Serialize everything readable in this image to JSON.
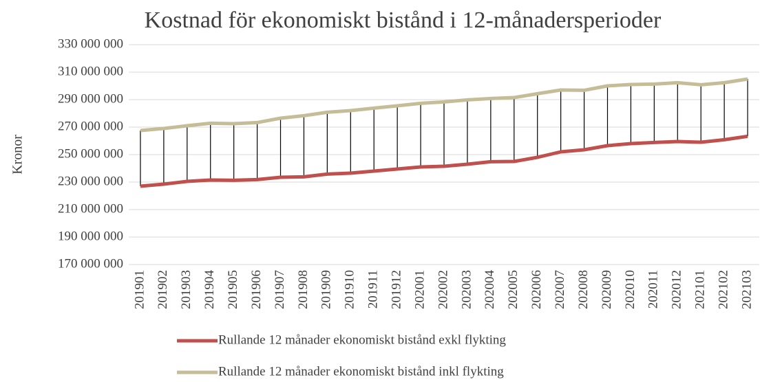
{
  "chart_data": {
    "type": "line",
    "title": "Kostnad för ekonomiskt bistånd i 12-månadersperioder",
    "y_label": "Kronor",
    "categories": [
      "201901",
      "201902",
      "201903",
      "201904",
      "201905",
      "201906",
      "201907",
      "201908",
      "201909",
      "201910",
      "201911",
      "201912",
      "202001",
      "202002",
      "202003",
      "202004",
      "202005",
      "202006",
      "202007",
      "202008",
      "202009",
      "202010",
      "202011",
      "202012",
      "202101",
      "202102",
      "202103"
    ],
    "series": [
      {
        "name": "Rullande 12 månader ekonomiskt bistånd exkl flykting",
        "color": "#c0504d",
        "values": [
          227000000,
          228500000,
          230500000,
          231500000,
          231300000,
          231800000,
          233500000,
          233800000,
          235800000,
          236500000,
          238000000,
          239500000,
          241000000,
          241500000,
          243000000,
          244800000,
          245000000,
          248000000,
          252000000,
          253500000,
          256500000,
          258000000,
          258800000,
          259500000,
          259000000,
          260800000,
          263300000
        ]
      },
      {
        "name": "Rullande 12 månader ekonomiskt bistånd inkl flykting",
        "color": "#c4bd97",
        "values": [
          267500000,
          269000000,
          271000000,
          272800000,
          272500000,
          273300000,
          276500000,
          278300000,
          280800000,
          282000000,
          283800000,
          285500000,
          287300000,
          288300000,
          289800000,
          290800000,
          291500000,
          294300000,
          297000000,
          296800000,
          300000000,
          301000000,
          301300000,
          302300000,
          300800000,
          302300000,
          305000000
        ]
      }
    ],
    "high_low_lines": true,
    "ylim": [
      170000000,
      330000000
    ],
    "yticks": [
      {
        "value": 170000000,
        "label": "170 000 000"
      },
      {
        "value": 190000000,
        "label": "190 000 000"
      },
      {
        "value": 210000000,
        "label": "210 000 000"
      },
      {
        "value": 230000000,
        "label": "230 000 000"
      },
      {
        "value": 250000000,
        "label": "250 000 000"
      },
      {
        "value": 270000000,
        "label": "270 000 000"
      },
      {
        "value": 290000000,
        "label": "290 000 000"
      },
      {
        "value": 310000000,
        "label": "310 000 000"
      },
      {
        "value": 330000000,
        "label": "330 000 000"
      }
    ],
    "grid": true,
    "legend": "bottom"
  }
}
